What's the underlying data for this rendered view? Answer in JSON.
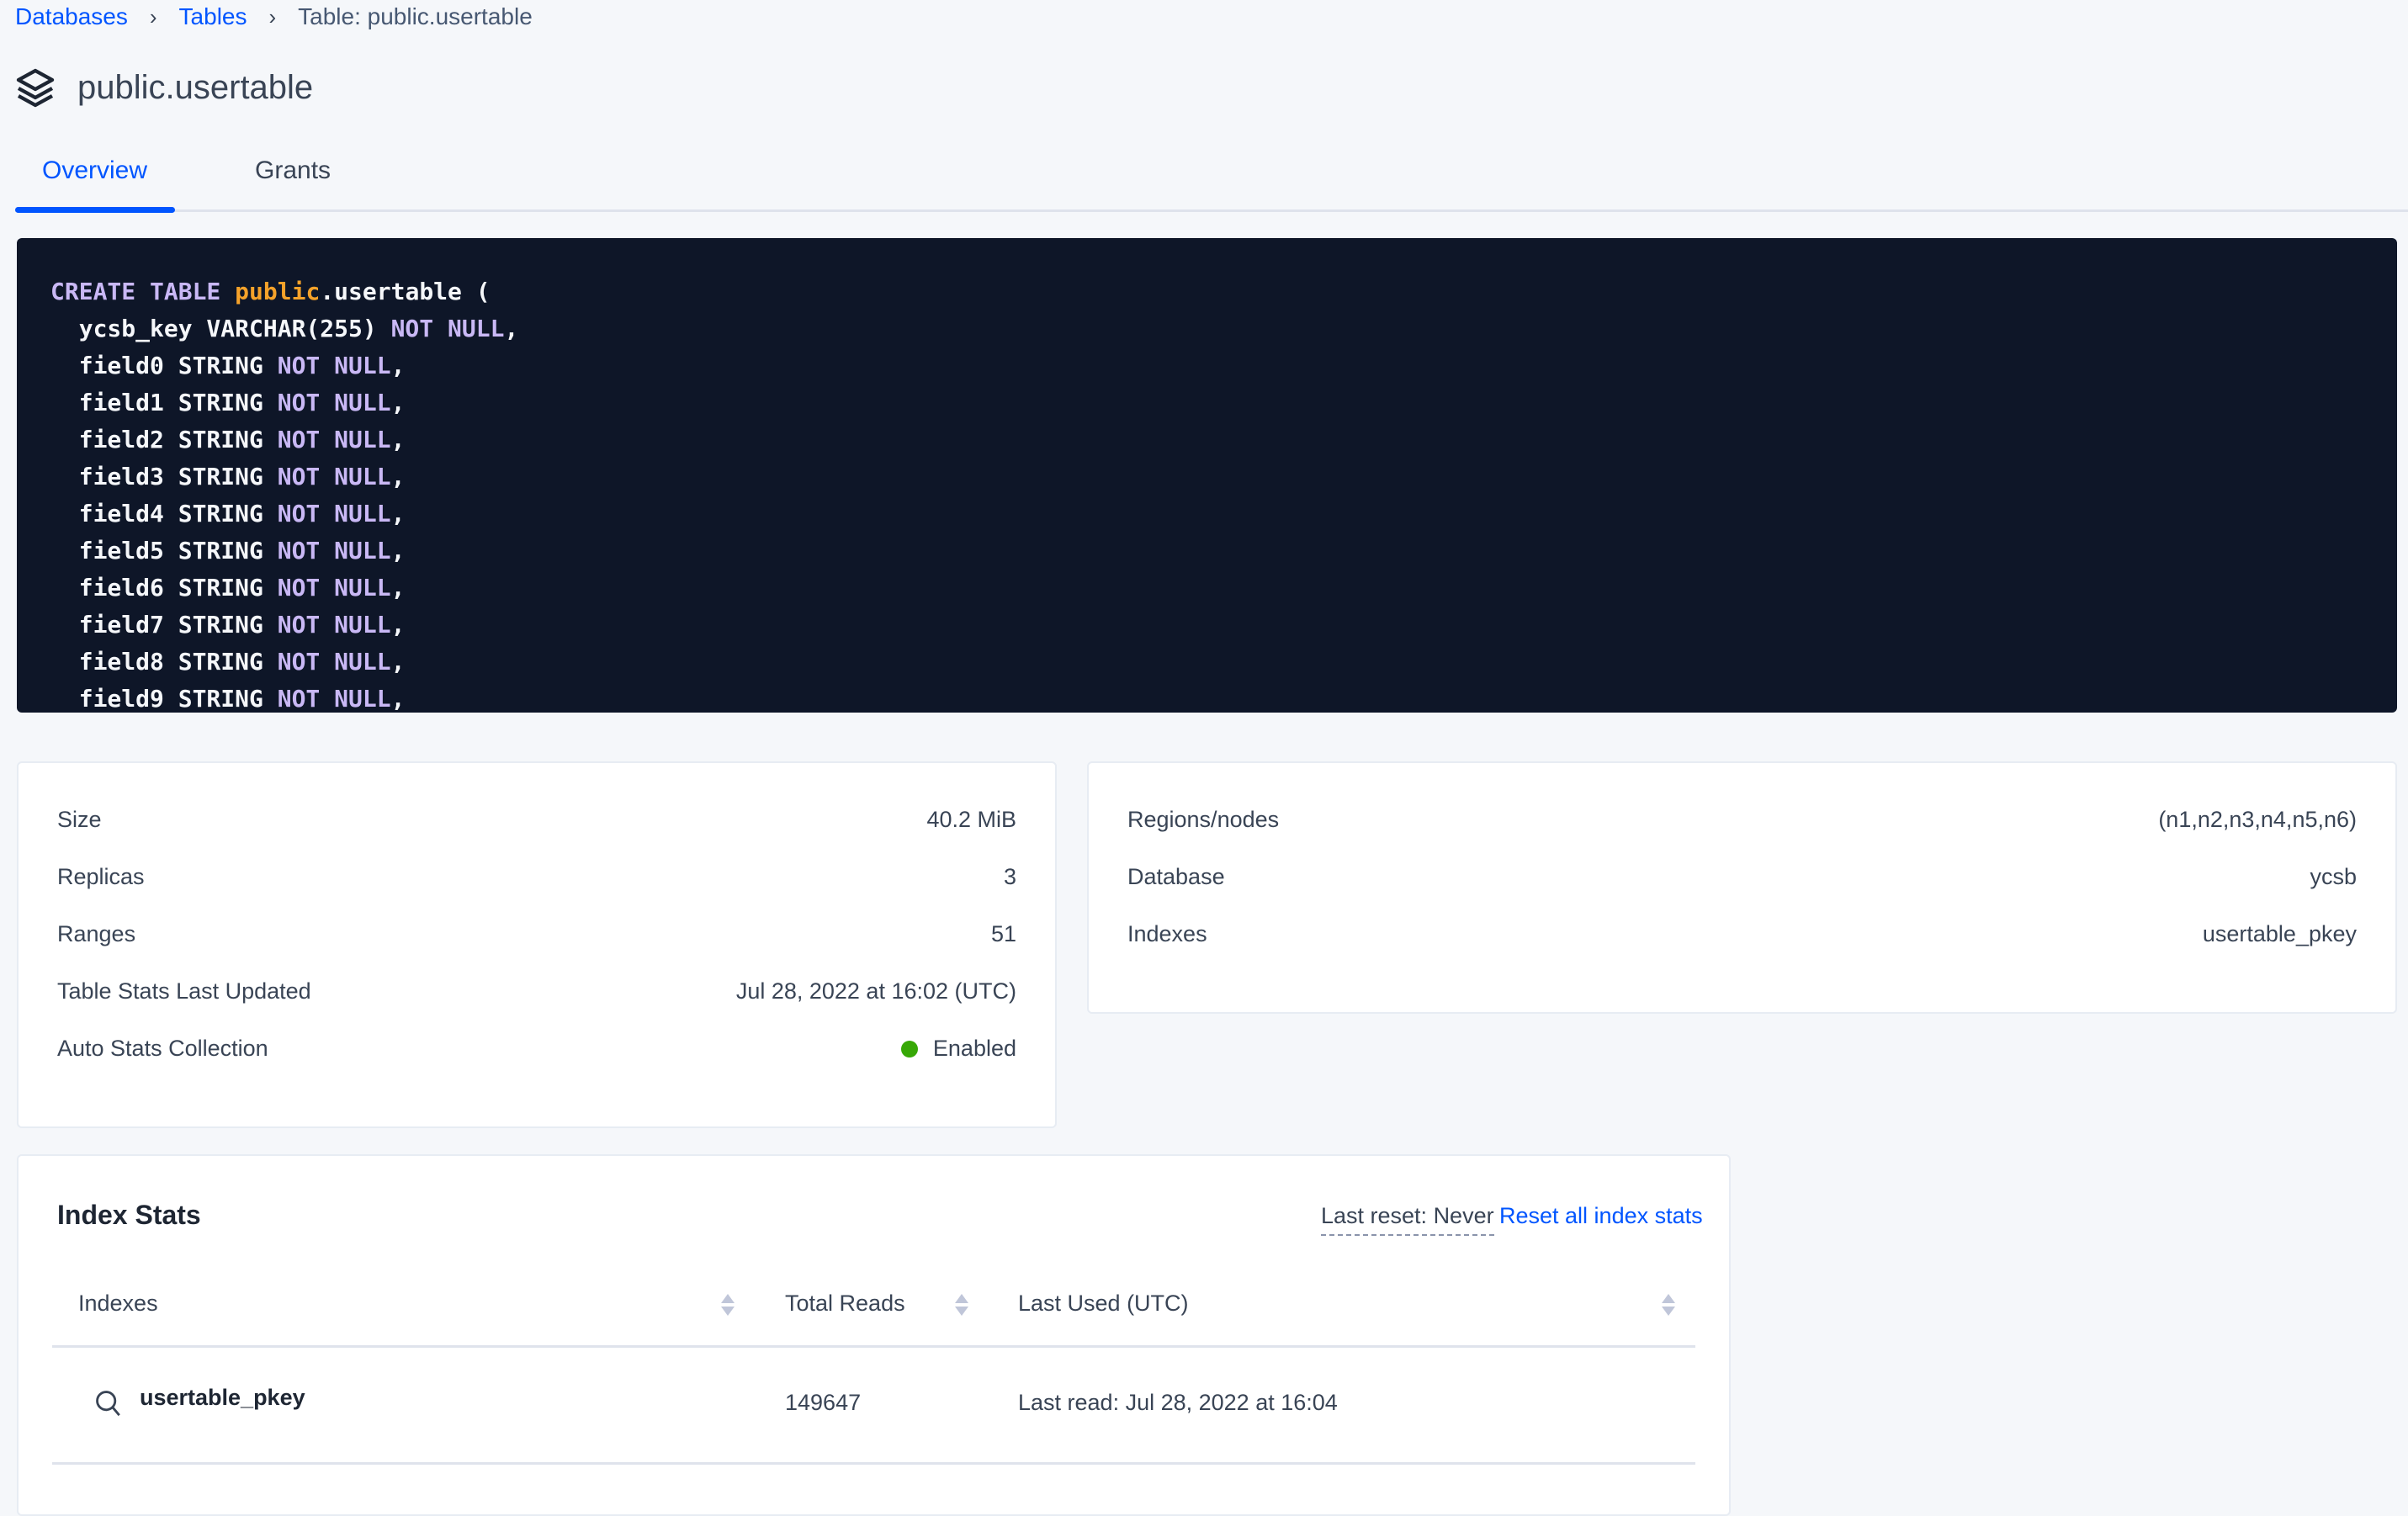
{
  "breadcrumb": {
    "items": [
      "Databases",
      "Tables"
    ],
    "current": "Table: public.usertable",
    "separator": "›"
  },
  "header": {
    "title": "public.usertable",
    "icon": "stack-icon"
  },
  "tabs": [
    {
      "label": "Overview",
      "active": true
    },
    {
      "label": "Grants",
      "active": false
    }
  ],
  "create_statement": {
    "lines": [
      [
        [
          "kw",
          "CREATE TABLE "
        ],
        [
          "sch",
          "public"
        ],
        [
          "",
          ".usertable ("
        ]
      ],
      [
        [
          "",
          "  ycsb_key VARCHAR(255) "
        ],
        [
          "kw",
          "NOT NULL"
        ],
        [
          "",
          ","
        ]
      ],
      [
        [
          "",
          "  field0 STRING "
        ],
        [
          "kw",
          "NOT NULL"
        ],
        [
          "",
          ","
        ]
      ],
      [
        [
          "",
          "  field1 STRING "
        ],
        [
          "kw",
          "NOT NULL"
        ],
        [
          "",
          ","
        ]
      ],
      [
        [
          "",
          "  field2 STRING "
        ],
        [
          "kw",
          "NOT NULL"
        ],
        [
          "",
          ","
        ]
      ],
      [
        [
          "",
          "  field3 STRING "
        ],
        [
          "kw",
          "NOT NULL"
        ],
        [
          "",
          ","
        ]
      ],
      [
        [
          "",
          "  field4 STRING "
        ],
        [
          "kw",
          "NOT NULL"
        ],
        [
          "",
          ","
        ]
      ],
      [
        [
          "",
          "  field5 STRING "
        ],
        [
          "kw",
          "NOT NULL"
        ],
        [
          "",
          ","
        ]
      ],
      [
        [
          "",
          "  field6 STRING "
        ],
        [
          "kw",
          "NOT NULL"
        ],
        [
          "",
          ","
        ]
      ],
      [
        [
          "",
          "  field7 STRING "
        ],
        [
          "kw",
          "NOT NULL"
        ],
        [
          "",
          ","
        ]
      ],
      [
        [
          "",
          "  field8 STRING "
        ],
        [
          "kw",
          "NOT NULL"
        ],
        [
          "",
          ","
        ]
      ],
      [
        [
          "",
          "  field9 STRING "
        ],
        [
          "kw",
          "NOT NULL"
        ],
        [
          "",
          ","
        ]
      ]
    ]
  },
  "summary_left": [
    {
      "label": "Size",
      "value": "40.2 MiB"
    },
    {
      "label": "Replicas",
      "value": "3"
    },
    {
      "label": "Ranges",
      "value": "51"
    },
    {
      "label": "Table Stats Last Updated",
      "value": "Jul 28, 2022 at 16:02 (UTC)"
    },
    {
      "label": "Auto Stats Collection",
      "value": "Enabled",
      "status_color": "#37a806"
    }
  ],
  "summary_right": [
    {
      "label": "Regions/nodes",
      "value": "(n1,n2,n3,n4,n5,n6)"
    },
    {
      "label": "Database",
      "value": "ycsb"
    },
    {
      "label": "Indexes",
      "value": "usertable_pkey"
    }
  ],
  "index_stats": {
    "title": "Index Stats",
    "last_reset": "Last reset: Never",
    "reset_link": "Reset all index stats",
    "columns": [
      "Indexes",
      "Total Reads",
      "Last Used (UTC)"
    ],
    "rows": [
      {
        "index": "usertable_pkey",
        "total_reads": "149647",
        "last_used": "Last read: Jul 28, 2022 at 16:04"
      }
    ]
  },
  "colors": {
    "accent": "#0055ff",
    "code_bg": "#0e1628",
    "keyword": "#c9b8f5",
    "schema": "#f5a22a"
  }
}
